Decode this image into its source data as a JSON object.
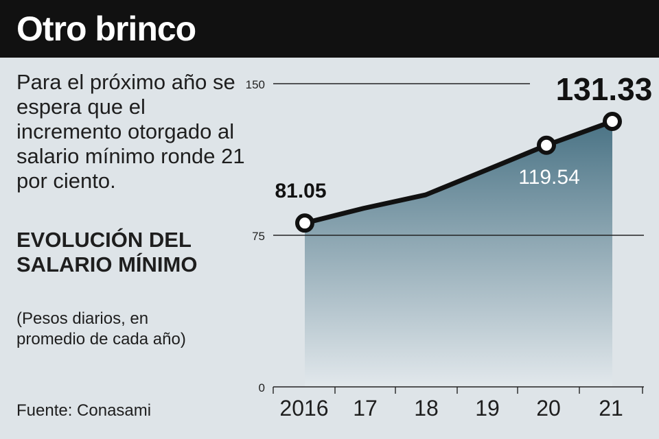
{
  "header": {
    "title": "Otro brinco"
  },
  "intro": {
    "text": "Para el próximo año se espera que el incremento otorgado al salario mínimo ronde 21 por ciento."
  },
  "section": {
    "title": "EVOLUCIÓN DEL SALARIO MÍNIMO",
    "units": "(Pesos diarios, en promedio de cada año)"
  },
  "source": {
    "text": "Fuente: Conasami"
  },
  "colors": {
    "header_bg": "#111111",
    "background": "#dee4e8",
    "area_top": "#4a7385",
    "area_bottom": "#e2e8ec",
    "line": "#111111"
  },
  "chart_data": {
    "type": "area",
    "categories": [
      "2016",
      "17",
      "18",
      "19",
      "20",
      "21"
    ],
    "values": [
      81.05,
      88.36,
      95.0,
      107.5,
      119.54,
      131.33
    ],
    "data_labels": [
      {
        "index": 0,
        "text": "81.05"
      },
      {
        "index": 4,
        "text": "119.54"
      },
      {
        "index": 5,
        "text": "131.33"
      }
    ],
    "y_ticks": [
      "0",
      "75",
      "150"
    ],
    "ylim": [
      0,
      150
    ],
    "grid": true,
    "title": "EVOLUCIÓN DEL SALARIO MÍNIMO",
    "ylabel": "(Pesos diarios, en promedio de cada año)",
    "xlabel": ""
  }
}
